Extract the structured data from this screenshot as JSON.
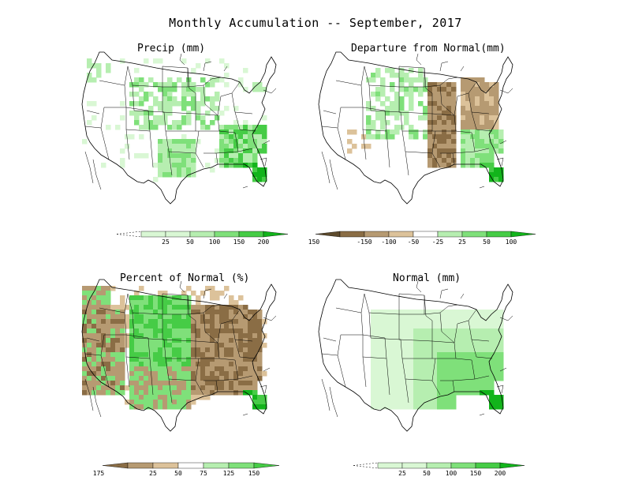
{
  "title": "Monthly Accumulation -- September, 2017",
  "panels": [
    {
      "title": "Precip (mm)",
      "legend": {
        "labels": [
          "25",
          "50",
          "100",
          "150",
          "200"
        ]
      }
    },
    {
      "title": "Departure from Normal(mm)",
      "legend": {
        "labels": [
          "-150",
          "-100",
          "-50",
          "-25",
          "25",
          "50",
          "100",
          "150"
        ]
      }
    },
    {
      "title": "Percent of Normal (%)",
      "legend": {
        "labels": [
          "25",
          "50",
          "75",
          "125",
          "150",
          "175"
        ]
      }
    },
    {
      "title": "Normal (mm)",
      "legend": {
        "labels": [
          "25",
          "50",
          "100",
          "150",
          "200"
        ]
      }
    }
  ],
  "colors": {
    "green_1": "#d9f7d4",
    "green_2": "#b6eeb0",
    "green_3": "#7fe07a",
    "green_4": "#46cc46",
    "green_5": "#12b41b",
    "brown_1": "#5d4a2c",
    "brown_2": "#8a6d45",
    "brown_3": "#b69a72",
    "brown_4": "#dcc29a",
    "border": "#000000"
  }
}
